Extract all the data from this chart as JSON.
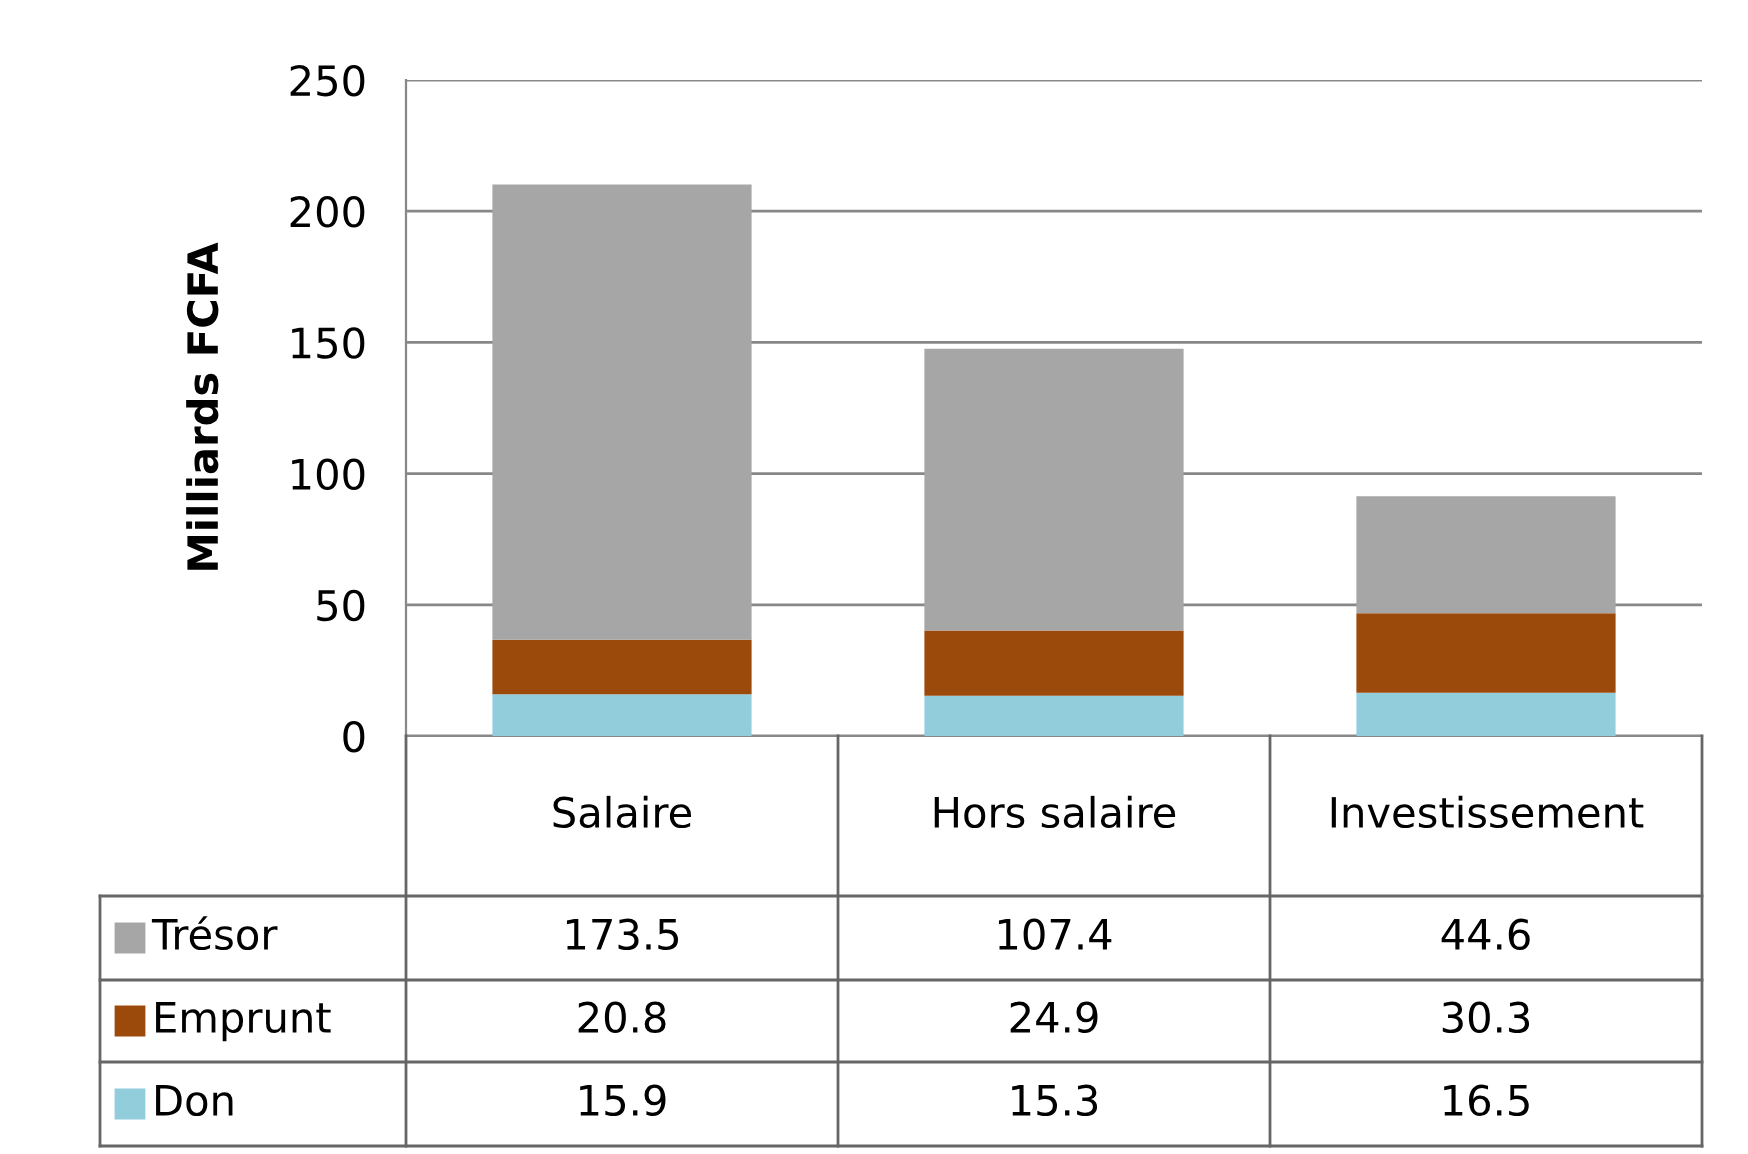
{
  "chart_data": {
    "type": "bar",
    "stacked": true,
    "ylabel": "Milliards FCFA",
    "categories": [
      "Salaire",
      "Hors salaire",
      "Investissement"
    ],
    "series": [
      {
        "name": "Don",
        "color": "#92cddc",
        "values": [
          15.9,
          15.3,
          16.5
        ]
      },
      {
        "name": "Emprunt",
        "color": "#9c4a0c",
        "values": [
          20.8,
          24.9,
          30.3
        ]
      },
      {
        "name": "Trésor",
        "color": "#a6a6a6",
        "values": [
          173.5,
          107.4,
          44.6
        ]
      }
    ],
    "ylim": [
      0,
      250
    ],
    "yticks": [
      0,
      50,
      100,
      150,
      200,
      250
    ],
    "grid": "y",
    "legend": "bottom left",
    "data_labels": true
  }
}
